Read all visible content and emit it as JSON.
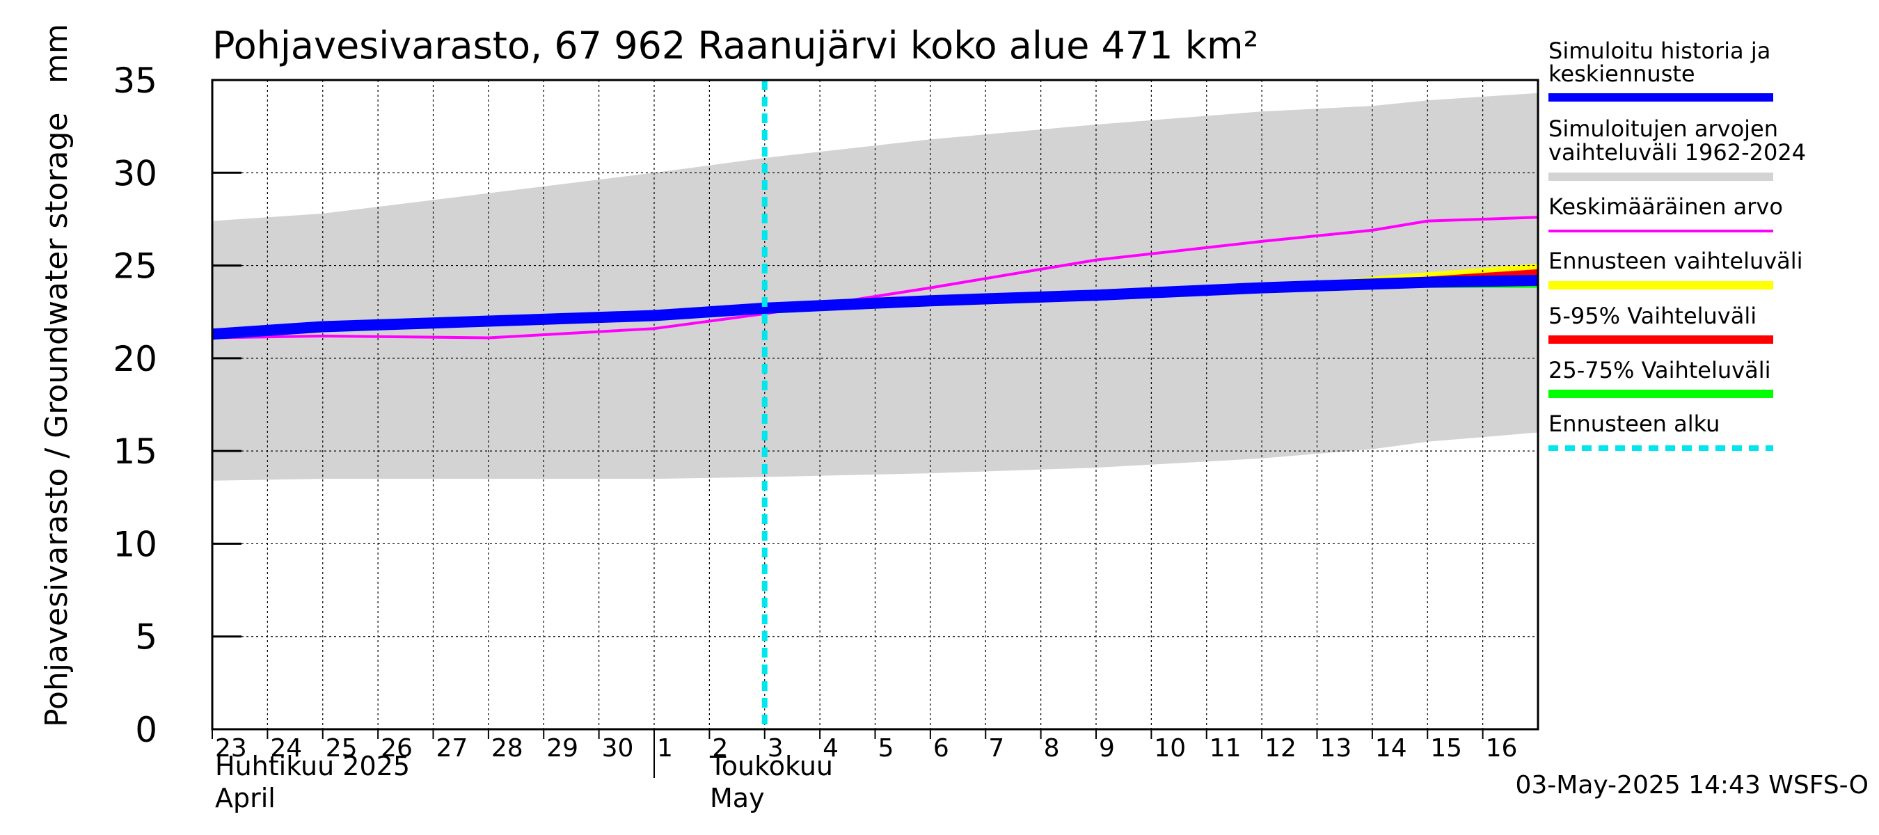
{
  "chart_data": {
    "type": "area",
    "title": "Pohjavesivarasto, 67 962 Raanujärvi koko alue 471 km²",
    "ylabel": "Pohjavesivarasto / Groundwater storage",
    "yunit": "mm",
    "ylim": [
      0,
      35
    ],
    "yticks": [
      0,
      5,
      10,
      15,
      20,
      25,
      30,
      35
    ],
    "x_start": "2025-04-23",
    "x_end": "2025-05-17",
    "x_tick_labels": [
      "23",
      "24",
      "25",
      "26",
      "27",
      "28",
      "29",
      "30",
      "1",
      "2",
      "3",
      "4",
      "5",
      "6",
      "7",
      "8",
      "9",
      "10",
      "11",
      "12",
      "13",
      "14",
      "15",
      "16"
    ],
    "month_labels": [
      {
        "fi": "Huhtikuu  2025",
        "en": "April"
      },
      {
        "fi": "Toukokuu",
        "en": "May"
      }
    ],
    "forecast_start": "2025-05-03",
    "grid": true,
    "legend_position": "right",
    "footer": "03-May-2025 14:43 WSFS-O",
    "x": [
      "2025-04-23",
      "2025-04-25",
      "2025-04-28",
      "2025-05-01",
      "2025-05-03",
      "2025-05-06",
      "2025-05-09",
      "2025-05-12",
      "2025-05-14",
      "2025-05-15",
      "2025-05-17"
    ],
    "series": [
      {
        "name": "Simuloitujen arvojen vaihteluväli 1962-2024",
        "kind": "band",
        "color": "#d3d3d3",
        "upper": [
          27.4,
          27.8,
          28.9,
          30.0,
          30.8,
          31.8,
          32.6,
          33.3,
          33.6,
          33.9,
          34.3
        ],
        "lower": [
          13.4,
          13.5,
          13.5,
          13.5,
          13.6,
          13.8,
          14.1,
          14.6,
          15.1,
          15.5,
          16.0
        ]
      },
      {
        "name": "Keskimääräinen arvo",
        "kind": "line",
        "color": "#ff00ff",
        "values": [
          21.1,
          21.2,
          21.1,
          21.6,
          22.4,
          23.8,
          25.3,
          26.3,
          26.9,
          27.4,
          27.6
        ]
      },
      {
        "name": "Ennusteen vaihteluväli",
        "kind": "band",
        "color": "#ffff00",
        "x": [
          "2025-05-12",
          "2025-05-14",
          "2025-05-17"
        ],
        "upper": [
          23.8,
          24.4,
          25.1
        ],
        "lower": [
          23.8,
          23.8,
          23.8
        ]
      },
      {
        "name": "5-95% Vaihteluväli",
        "kind": "band",
        "color": "#ff0000",
        "x": [
          "2025-05-12",
          "2025-05-14",
          "2025-05-17"
        ],
        "upper": [
          23.8,
          24.2,
          24.8
        ],
        "lower": [
          23.8,
          23.8,
          23.9
        ]
      },
      {
        "name": "25-75% Vaihteluväli",
        "kind": "band",
        "color": "#00ff00",
        "x": [
          "2025-05-12",
          "2025-05-14",
          "2025-05-17"
        ],
        "upper": [
          23.8,
          23.9,
          24.1
        ],
        "lower": [
          23.8,
          23.8,
          23.8
        ]
      },
      {
        "name": "Simuloitu historia ja keskiennuste",
        "kind": "line",
        "color": "#0000ff",
        "values": [
          21.3,
          21.7,
          22.0,
          22.3,
          22.7,
          23.1,
          23.4,
          23.8,
          24.0,
          24.1,
          24.2
        ]
      }
    ],
    "legend": [
      {
        "label": "Simuloitu historia ja keskiennuste",
        "color": "#0000ff",
        "style": "thick"
      },
      {
        "label": "Simuloitujen arvojen vaihteluväli 1962-2024",
        "color": "#d3d3d3",
        "style": "thick"
      },
      {
        "label": "Keskimääräinen arvo",
        "color": "#ff00ff",
        "style": "thin"
      },
      {
        "label": "Ennusteen vaihteluväli",
        "color": "#ffff00",
        "style": "thick"
      },
      {
        "label": "5-95% Vaihteluväli",
        "color": "#ff0000",
        "style": "thick"
      },
      {
        "label": "25-75% Vaihteluväli",
        "color": "#00ff00",
        "style": "thick"
      },
      {
        "label": "Ennusteen alku",
        "color": "#00e5ee",
        "style": "dashed"
      }
    ]
  }
}
